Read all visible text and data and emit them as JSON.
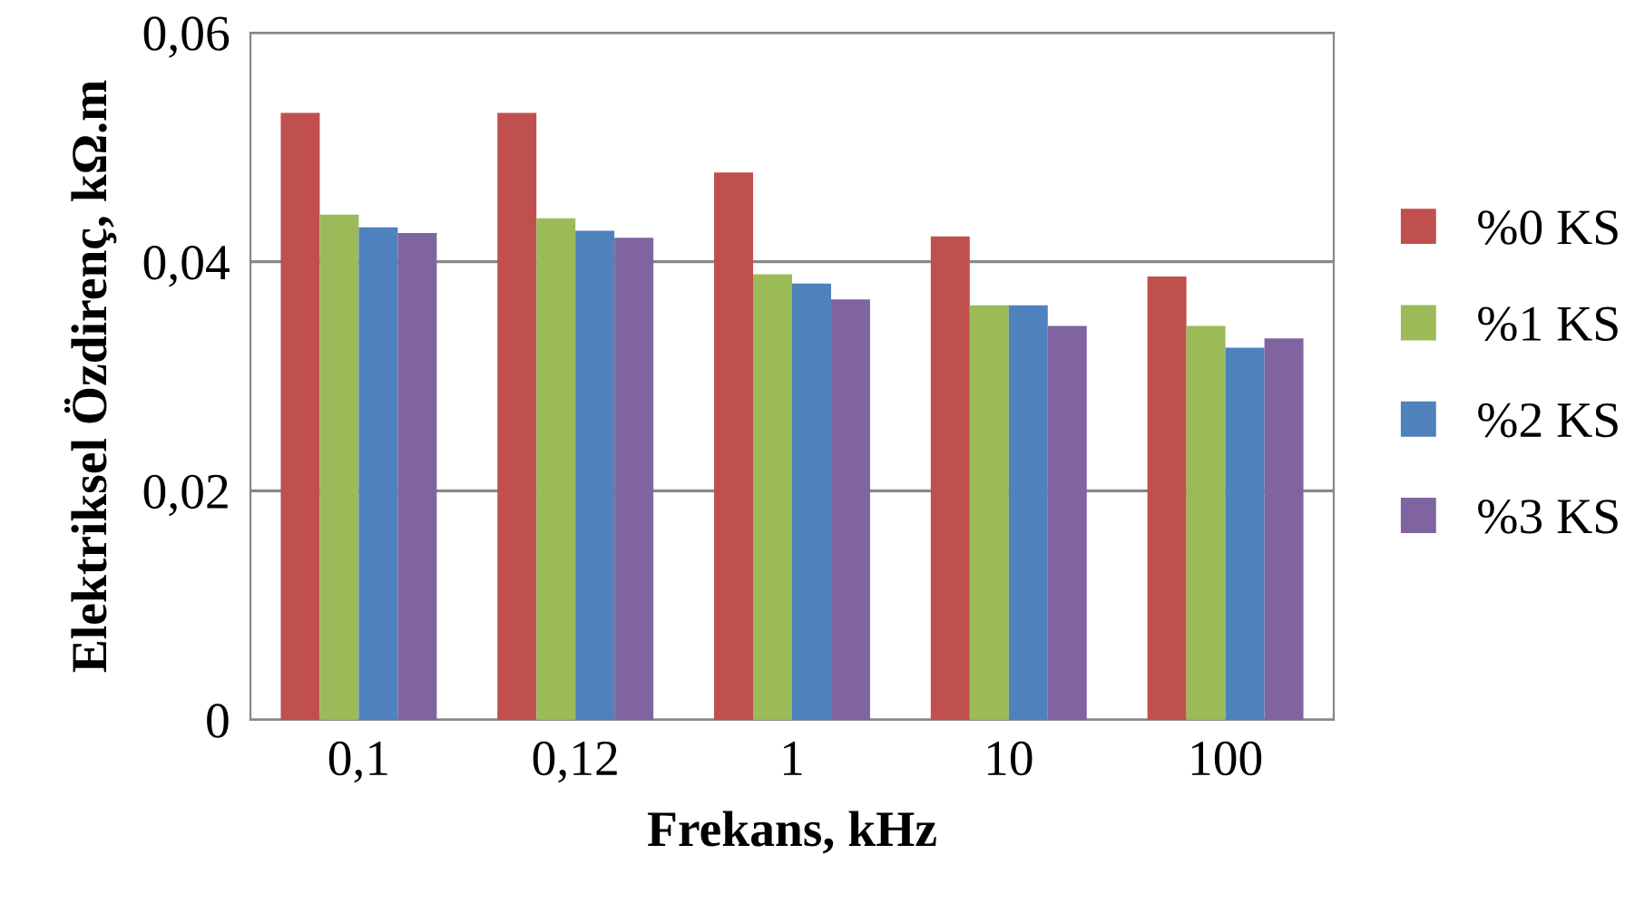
{
  "chart_data": {
    "type": "bar",
    "xlabel": "Frekans, kHz",
    "ylabel": "Elektriksel Özdirenç, kΩ.m",
    "categories": [
      "0,1",
      "0,12",
      "1",
      "10",
      "100"
    ],
    "series": [
      {
        "name": "%0 KS",
        "color": "#c0504d",
        "values": [
          0.053,
          0.053,
          0.0478,
          0.0422,
          0.0387
        ]
      },
      {
        "name": "%1 KS",
        "color": "#9bbb59",
        "values": [
          0.0441,
          0.0438,
          0.0389,
          0.0362,
          0.0344
        ]
      },
      {
        "name": "%2 KS",
        "color": "#4f81bd",
        "values": [
          0.043,
          0.0427,
          0.0381,
          0.0362,
          0.0325
        ]
      },
      {
        "name": "%3 KS",
        "color": "#8064a2",
        "values": [
          0.0425,
          0.0421,
          0.0367,
          0.0344,
          0.0333
        ]
      }
    ],
    "ylim": [
      0,
      0.06
    ],
    "yticks": [
      0,
      {
        "value": 0.02,
        "label": "0,02"
      },
      {
        "value": 0.04,
        "label": "0,04"
      },
      {
        "value": 0.06,
        "label": "0,06"
      }
    ],
    "grid": "y",
    "legend": "right"
  }
}
